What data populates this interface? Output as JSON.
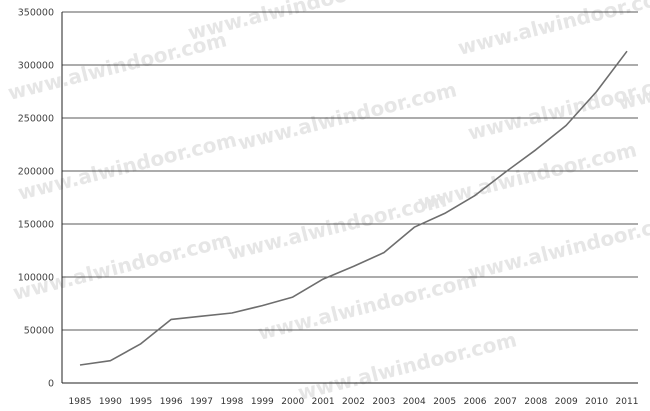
{
  "watermark": "www.alwindoor.com",
  "chart_data": {
    "type": "line",
    "title": "",
    "xlabel": "",
    "ylabel": "",
    "x": [
      "1985",
      "1990",
      "1995",
      "1996",
      "1997",
      "1998",
      "1999",
      "2000",
      "2001",
      "2002",
      "2003",
      "2004",
      "2005",
      "2006",
      "2007",
      "2008",
      "2009",
      "2010",
      "2011"
    ],
    "series": [
      {
        "values": [
          17000,
          21000,
          37000,
          60000,
          63000,
          66000,
          73000,
          81000,
          98000,
          110000,
          123000,
          147000,
          160000,
          177000,
          199000,
          220000,
          243000,
          275000,
          313000
        ],
        "color": "#6e6e6e"
      }
    ],
    "yticks": [
      "0",
      "50000",
      "100000",
      "150000",
      "200000",
      "250000",
      "300000",
      "350000"
    ],
    "ylim": [
      0,
      350000
    ],
    "grid": true,
    "legend": "none"
  }
}
